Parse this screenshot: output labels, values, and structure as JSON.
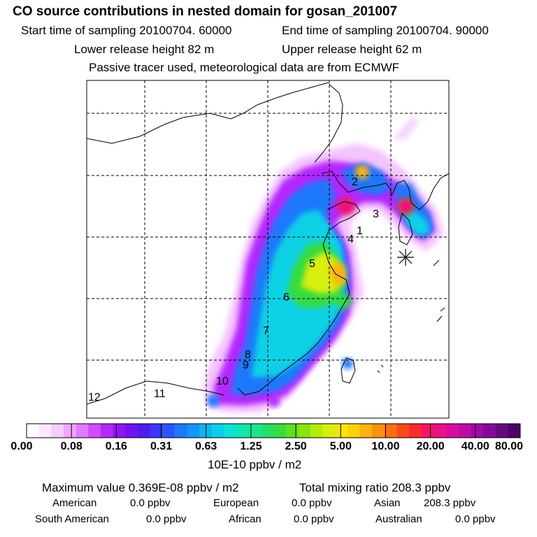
{
  "header": {
    "title": "CO  source contributions in nested domain for gosan_201007",
    "start_time": "Start time of sampling 20100704. 60000",
    "end_time": "End time of sampling 20100704. 90000",
    "lower_height": "Lower release height   82 m",
    "upper_height": "Upper release height   62 m",
    "note": "Passive tracer used, meteorological data are from ECMWF"
  },
  "map": {
    "region_labels": [
      "1",
      "2",
      "3",
      "4",
      "5",
      "6",
      "7",
      "8",
      "9",
      "10",
      "11",
      "12"
    ],
    "receptor_marker": "receptor-star"
  },
  "colorbar": {
    "tick_labels": [
      "0.00",
      "0.08",
      "0.16",
      "0.31",
      "0.63",
      "1.25",
      "2.50",
      "5.00",
      "10.00",
      "20.00",
      "40.00",
      "80.00"
    ],
    "colors": [
      "#ffffff",
      "#fde8ff",
      "#f7ccff",
      "#efa7ff",
      "#e37bff",
      "#d14bff",
      "#b526ff",
      "#9414f2",
      "#6f14ee",
      "#4d1cf0",
      "#3a38f7",
      "#2b56fb",
      "#1d79fb",
      "#1296f7",
      "#0cb4f0",
      "#08d0ea",
      "#0ae2d6",
      "#10e6b1",
      "#19e68c",
      "#22e066",
      "#35dc40",
      "#5ce120",
      "#88e60f",
      "#b2ec0a",
      "#d8ef0a",
      "#f2e80b",
      "#fcd00c",
      "#fdb20d",
      "#fd910f",
      "#fc6f12",
      "#fb4a17",
      "#f92a30",
      "#f51464",
      "#ea0f8a",
      "#d80c9f",
      "#c10aa8",
      "#a308a8",
      "#860899",
      "#6a0783",
      "#4c0566"
    ],
    "units": "10E-10 ppbv / m2"
  },
  "summary": {
    "max_value": "Maximum value  0.369E-08 ppbv / m2",
    "total_mixing": "Total mixing ratio      208.3 ppbv",
    "regions": [
      {
        "name": "American",
        "value": "0.0 ppbv"
      },
      {
        "name": "European",
        "value": "0.0 ppbv"
      },
      {
        "name": "Asian",
        "value": "208.3 ppbv"
      },
      {
        "name": "South American",
        "value": "0.0 ppbv"
      },
      {
        "name": "African",
        "value": "0.0 ppbv"
      },
      {
        "name": "Australian",
        "value": "0.0 ppbv"
      }
    ]
  }
}
